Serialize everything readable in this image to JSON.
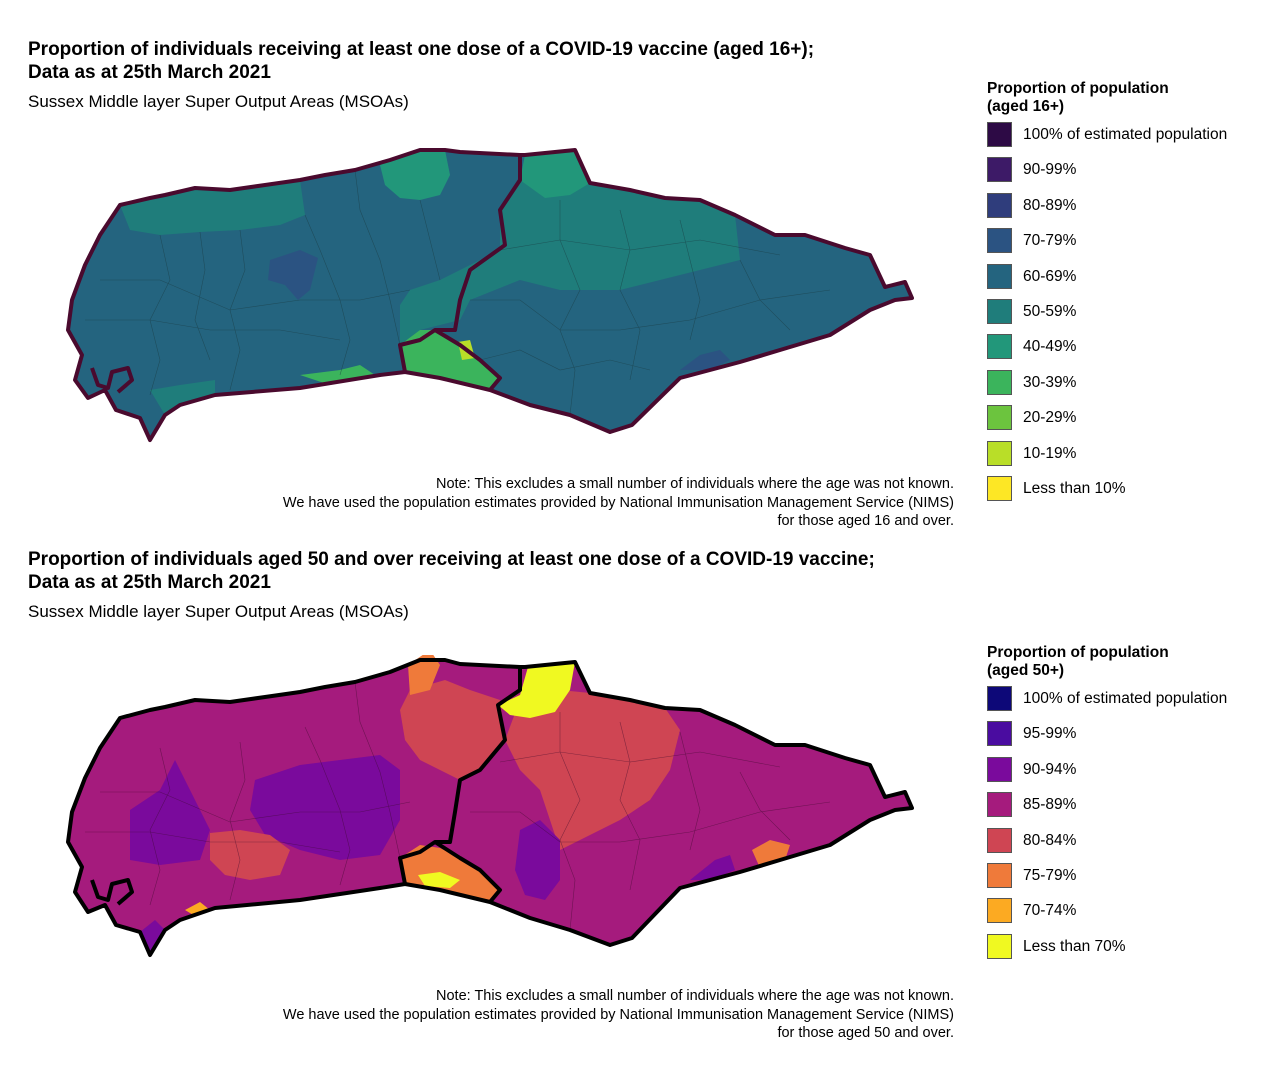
{
  "panels": [
    {
      "title_line1": "Proportion of individuals receiving at least one dose of a COVID-19 vaccine (aged 16+);",
      "title_line2": "Data as at 25th March 2021",
      "subtitle": "Sussex Middle layer Super Output Areas (MSOAs)",
      "note_lines": [
        "Note: This excludes a small number of individuals where the age was not known.",
        "We have used the population estimates provided by National Immunisation Management Service (NIMS)",
        "for those aged 16 and over."
      ],
      "legend_title_line1": "Proportion of population",
      "legend_title_line2": "(aged 16+)",
      "legend": [
        {
          "label": "100% of estimated population",
          "color": "#2d0a45"
        },
        {
          "label": "90-99%",
          "color": "#3d1a67"
        },
        {
          "label": "80-89%",
          "color": "#2f3d7c"
        },
        {
          "label": "70-79%",
          "color": "#2b5382"
        },
        {
          "label": "60-69%",
          "color": "#24647f"
        },
        {
          "label": "50-59%",
          "color": "#1f7d7b"
        },
        {
          "label": "40-49%",
          "color": "#22977a"
        },
        {
          "label": "30-39%",
          "color": "#3bb45c"
        },
        {
          "label": "20-29%",
          "color": "#6cc43e"
        },
        {
          "label": "10-19%",
          "color": "#b9de28"
        },
        {
          "label": "Less than 10%",
          "color": "#fde725"
        }
      ],
      "border_color": "#4a0a2e",
      "map_fill": "#24647f"
    },
    {
      "title_line1": "Proportion of individuals aged 50 and over receiving at least one dose of a COVID-19 vaccine;",
      "title_line2": "Data as at 25th March 2021",
      "subtitle": "Sussex Middle layer Super Output Areas (MSOAs)",
      "note_lines": [
        "Note: This excludes a small number of individuals where the age was not known.",
        "We have used the population estimates provided by National Immunisation Management Service (NIMS)",
        "for those aged 50 and over."
      ],
      "legend_title_line1": "Proportion of population",
      "legend_title_line2": "(aged 50+)",
      "legend": [
        {
          "label": "100% of estimated population",
          "color": "#0d0878"
        },
        {
          "label": "95-99%",
          "color": "#4a0ca0"
        },
        {
          "label": "90-94%",
          "color": "#7a0a9c"
        },
        {
          "label": "85-89%",
          "color": "#a51b7d"
        },
        {
          "label": "80-84%",
          "color": "#cf4553"
        },
        {
          "label": "75-79%",
          "color": "#ef7a3a"
        },
        {
          "label": "70-74%",
          "color": "#fcaa22"
        },
        {
          "label": "Less than 70%",
          "color": "#f0f921"
        }
      ],
      "border_color": "#000000",
      "map_fill": "#a51b7d"
    }
  ]
}
